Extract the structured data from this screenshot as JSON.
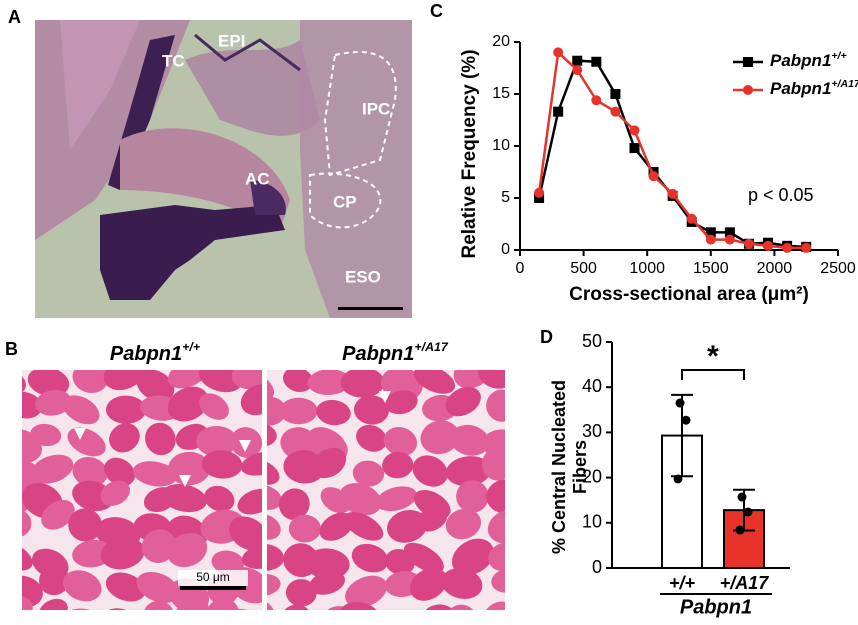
{
  "panel_letters": [
    "A",
    "B",
    "C",
    "D"
  ],
  "panel_a": {
    "labels": [
      "TC",
      "EPI",
      "AC",
      "IPC",
      "CP",
      "ESO"
    ]
  },
  "panel_b": {
    "titles": [
      "Pabpn1+/+",
      "Pabpn1+/A17"
    ],
    "scale_bar": "50 μm"
  },
  "chart_data": [
    {
      "type": "line",
      "x_label": "Cross-sectional area (μm²)",
      "y_label": "Relative Frequency (%)",
      "annotation": "p < 0.05",
      "x": [
        150,
        300,
        450,
        600,
        750,
        900,
        1050,
        1200,
        1350,
        1500,
        1650,
        1800,
        1950,
        2100,
        2250
      ],
      "series": [
        {
          "name": "Pabpn1+/+",
          "color": "#000000",
          "marker": "square",
          "values": [
            5,
            13.3,
            18.2,
            18.1,
            15,
            9.8,
            7.5,
            5.2,
            2.7,
            1.7,
            1.7,
            0.6,
            0.7,
            0.4,
            0.3
          ]
        },
        {
          "name": "Pabpn1+/A17",
          "color": "#e8332a",
          "marker": "circle",
          "values": [
            5.5,
            19,
            17.3,
            14.4,
            13.3,
            11.5,
            7.1,
            5.4,
            3,
            1,
            1,
            0.6,
            0.4,
            0.2,
            0.2
          ]
        }
      ],
      "xlim": [
        0,
        2500
      ],
      "xticks": [
        0,
        500,
        1000,
        1500,
        2000,
        2500
      ],
      "ylim": [
        0,
        20
      ],
      "yticks": [
        0,
        5,
        10,
        15,
        20
      ]
    },
    {
      "type": "bar",
      "y_label": [
        "% Central Nucleated",
        "Fibers"
      ],
      "x_group_label": "Pabpn1",
      "significance": "*",
      "categories": [
        "+/+",
        "+/A17"
      ],
      "values": [
        29.3,
        12.8
      ],
      "errors": [
        9,
        4.5
      ],
      "points": [
        [
          36.5,
          32.7,
          19.7
        ],
        [
          15.7,
          12.4,
          8.4
        ]
      ],
      "colors": [
        "#ffffff",
        "#e8332a"
      ],
      "ylim": [
        0,
        50
      ],
      "yticks": [
        0,
        10,
        20,
        30,
        40,
        50
      ]
    }
  ]
}
